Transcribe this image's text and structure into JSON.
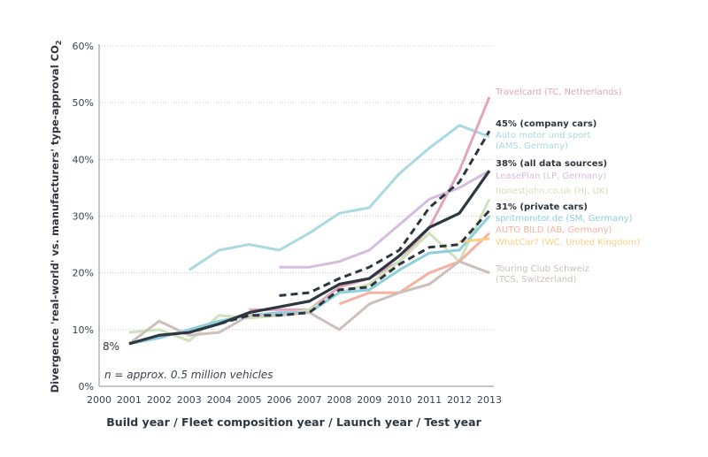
{
  "chart_data": {
    "type": "line",
    "title": "",
    "xlabel": "Build year / Fleet composition year / Launch year / Test year",
    "ylabel": "Divergence 'real-world' vs. manufacturers' type-approval CO",
    "ylabel_sub": "2",
    "xlim": [
      2000,
      2013
    ],
    "ylim": [
      0,
      60
    ],
    "x_ticks": [
      "2000",
      "2001",
      "2002",
      "2003",
      "2004",
      "2005",
      "2006",
      "2007",
      "2008",
      "2009",
      "2010",
      "2011",
      "2012",
      "2013"
    ],
    "y_ticks": [
      "0%",
      "10%",
      "20%",
      "30%",
      "40%",
      "50%",
      "60%"
    ],
    "y_tick_values": [
      0,
      10,
      20,
      30,
      40,
      50,
      60
    ],
    "grid": true,
    "annotations": {
      "start_value": "8%",
      "sample_note": "n = approx. 0.5 million vehicles"
    },
    "series": [
      {
        "name": "Auto motor und sport (AMS, Germany)",
        "label_lines": [
          "Auto motor und sport",
          "(AMS, Germany)"
        ],
        "color": "#a9d9e1",
        "style": "solid",
        "x": [
          2003,
          2004,
          2005,
          2006,
          2007,
          2008,
          2009,
          2010,
          2011,
          2012,
          2013
        ],
        "values": [
          20.5,
          24,
          25,
          24,
          27,
          30.5,
          31.5,
          37.5,
          42,
          46,
          44
        ]
      },
      {
        "name": "Travelcard (TC, Netherlands)",
        "label_lines": [
          "Travelcard (TC, Netherlands)"
        ],
        "color": "#e2a6bc",
        "style": "solid",
        "x": [
          2005,
          2006,
          2007,
          2008,
          2009,
          2010,
          2011,
          2012,
          2013
        ],
        "values": [
          13.5,
          13.5,
          13.5,
          17.5,
          19,
          22,
          28,
          38,
          51
        ]
      },
      {
        "name": "LeasePlan (LP, Germany)",
        "label_lines": [
          "LeasePlan (LP, Germany)"
        ],
        "color": "#d6bddf",
        "style": "solid",
        "x": [
          2006,
          2007,
          2008,
          2009,
          2010,
          2011,
          2012,
          2013
        ],
        "values": [
          21,
          21,
          22,
          24,
          28.5,
          33,
          35,
          38
        ]
      },
      {
        "name": "honestjohn.co.uk (HJ, UK)",
        "label_lines": [
          "honestjohn.co.uk (HJ, UK)"
        ],
        "color": "#d0e2bb",
        "style": "solid",
        "x": [
          2001,
          2002,
          2003,
          2004,
          2005,
          2006,
          2007,
          2008,
          2009,
          2010,
          2011,
          2012,
          2013
        ],
        "values": [
          9.5,
          10,
          8,
          12.5,
          12,
          12.5,
          13.5,
          16.5,
          18,
          22,
          27,
          22,
          33
        ]
      },
      {
        "name": "spritmonitor.de (SM, Germany)",
        "label_lines": [
          "spritmonitor.de (SM, Germany)"
        ],
        "color": "#8ecfdc",
        "style": "solid",
        "x": [
          2001,
          2002,
          2003,
          2004,
          2005,
          2006,
          2007,
          2008,
          2009,
          2010,
          2011,
          2012,
          2013
        ],
        "values": [
          7.5,
          8.5,
          10,
          11.5,
          12.5,
          13,
          13,
          16.5,
          17,
          20.5,
          23.5,
          24,
          30
        ]
      },
      {
        "name": "AUTO BILD (AB, Germany)",
        "label_lines": [
          "AUTO BILD (AB, Germany)"
        ],
        "color": "#f5b2a2",
        "style": "solid",
        "x": [
          2008,
          2009,
          2010,
          2011,
          2012,
          2013
        ],
        "values": [
          14.5,
          16.5,
          16.5,
          20,
          22,
          27
        ]
      },
      {
        "name": "WhatCar? (WC, United Kingdom)",
        "label_lines": [
          "WhatCar? (WC, United Kingdom)"
        ],
        "color": "#f8d184",
        "style": "solid",
        "x": [
          2012,
          2013
        ],
        "values": [
          25.5,
          26
        ]
      },
      {
        "name": "Touring Club Schweiz (TCS, Switzerland)",
        "label_lines": [
          "Touring Club Schweiz",
          "(TCS, Switzerland)"
        ],
        "color": "#cbc0bc",
        "style": "solid",
        "x": [
          2001,
          2002,
          2003,
          2004,
          2005,
          2006,
          2007,
          2008,
          2009,
          2010,
          2011,
          2012,
          2013
        ],
        "values": [
          7.5,
          11.5,
          9,
          9.5,
          12.5,
          12.5,
          13,
          10,
          14.5,
          16.5,
          18,
          22,
          20
        ]
      },
      {
        "name": "45% (company cars)",
        "label_lines": [
          "45% (company cars)"
        ],
        "color": "#2e3640",
        "style": "dashed",
        "x": [
          2006,
          2007,
          2008,
          2009,
          2010,
          2011,
          2012,
          2013
        ],
        "values": [
          16,
          16.5,
          19,
          21,
          24,
          31.5,
          36,
          45
        ]
      },
      {
        "name": "31% (private cars)",
        "label_lines": [
          "31% (private cars)"
        ],
        "color": "#2e3640",
        "style": "dashed",
        "x": [
          2004,
          2005,
          2006,
          2007,
          2008,
          2009,
          2010,
          2011,
          2012,
          2013
        ],
        "values": [
          11,
          12.5,
          12.5,
          13,
          17,
          17.5,
          21.5,
          24.5,
          25,
          31
        ]
      },
      {
        "name": "38% (all data sources)",
        "label_lines": [
          "38% (all data sources)"
        ],
        "color": "#2e3640",
        "style": "solid-thick",
        "x": [
          2001,
          2002,
          2003,
          2004,
          2005,
          2006,
          2007,
          2008,
          2009,
          2010,
          2011,
          2012,
          2013
        ],
        "values": [
          7.5,
          9,
          9.5,
          11,
          13,
          14,
          15,
          18,
          19,
          23,
          28,
          30.5,
          38
        ]
      }
    ],
    "legend_order": [
      1,
      8,
      0,
      10,
      2,
      3,
      9,
      4,
      5,
      6,
      7
    ],
    "legend_placement": "right"
  }
}
